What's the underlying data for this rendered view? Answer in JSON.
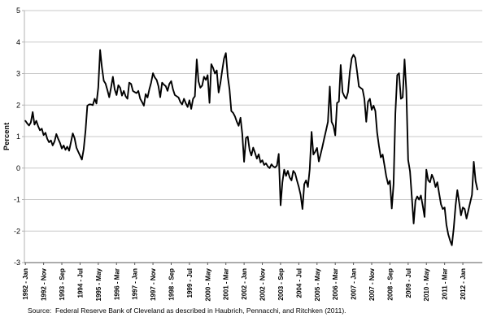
{
  "page": {
    "background": "#ffffff"
  },
  "chart_data": {
    "type": "line",
    "title": "",
    "xlabel": "",
    "ylabel": "Percent",
    "ylim": [
      -3,
      5
    ],
    "y_ticks": [
      5,
      4,
      3,
      2,
      1,
      0,
      -1,
      -2,
      -3
    ],
    "grid": "horizontal",
    "legend_position": "none",
    "x_start": "1992 - Jan",
    "x_frequency": "monthly",
    "x_ticks_every_n_points": 10,
    "x_tick_labels": [
      "1992 - Jan",
      "1992 - Nov",
      "1993 - Sep",
      "1994 - Jul",
      "1995 - May",
      "1996 - Mar",
      "1997 - Jan",
      "1997 - Nov",
      "1998 - Sep",
      "1999 - Jul",
      "2000 - May",
      "2001 - Mar",
      "2002 - Jan",
      "2002 - Nov",
      "2003 - Sep",
      "2004 - Jul",
      "2005 - May",
      "2006 - Mar",
      "2007 - Jan",
      "2007 - Nov",
      "2008 - Sep",
      "2009 - Jul",
      "2010 - May",
      "2011 - Mar",
      "2012 - Jan"
    ],
    "line_color": "#000000",
    "grid_color": "#c8c8c8",
    "y_axis_line_color": "#b3b3b3",
    "x_axis_line_color": "#595959",
    "values": [
      1.5,
      1.42,
      1.35,
      1.45,
      1.78,
      1.38,
      1.5,
      1.33,
      1.2,
      1.25,
      1.05,
      1.12,
      0.93,
      0.82,
      0.88,
      0.72,
      0.85,
      1.08,
      0.93,
      0.8,
      0.62,
      0.72,
      0.58,
      0.68,
      0.55,
      0.82,
      1.1,
      0.95,
      0.65,
      0.52,
      0.4,
      0.27,
      0.6,
      1.2,
      1.98,
      2.02,
      2.02,
      2.0,
      2.2,
      2.05,
      2.55,
      3.75,
      3.2,
      2.77,
      2.68,
      2.47,
      2.25,
      2.55,
      2.9,
      2.5,
      2.32,
      2.63,
      2.55,
      2.3,
      2.45,
      2.28,
      2.2,
      2.71,
      2.67,
      2.45,
      2.41,
      2.38,
      2.45,
      2.2,
      2.1,
      1.98,
      2.35,
      2.24,
      2.5,
      2.71,
      3.01,
      2.88,
      2.8,
      2.6,
      2.25,
      2.71,
      2.65,
      2.6,
      2.45,
      2.67,
      2.76,
      2.5,
      2.32,
      2.28,
      2.24,
      2.1,
      2.02,
      2.2,
      2.06,
      1.94,
      2.15,
      1.88,
      2.2,
      2.28,
      3.45,
      2.75,
      2.55,
      2.62,
      2.9,
      2.8,
      2.95,
      2.07,
      3.3,
      3.18,
      3.0,
      3.1,
      2.4,
      2.7,
      3.1,
      3.48,
      3.65,
      2.92,
      2.5,
      1.81,
      1.75,
      1.64,
      1.47,
      1.34,
      1.6,
      1.08,
      0.2,
      0.95,
      1.0,
      0.57,
      0.4,
      0.65,
      0.48,
      0.3,
      0.44,
      0.18,
      0.25,
      0.1,
      0.15,
      0.05,
      0.0,
      0.12,
      0.05,
      0.02,
      0.08,
      0.45,
      -1.18,
      -0.45,
      -0.05,
      -0.25,
      -0.09,
      -0.3,
      -0.39,
      -0.09,
      -0.17,
      -0.39,
      -0.6,
      -0.85,
      -1.3,
      -0.51,
      -0.39,
      -0.6,
      -0.04,
      1.15,
      0.43,
      0.52,
      0.64,
      0.21,
      0.45,
      0.69,
      0.95,
      1.21,
      1.47,
      2.59,
      1.47,
      1.34,
      1.04,
      2.07,
      2.11,
      3.27,
      2.41,
      2.28,
      2.2,
      2.41,
      3.05,
      3.48,
      3.6,
      3.5,
      3.05,
      2.59,
      2.54,
      2.5,
      2.2,
      1.47,
      2.11,
      2.2,
      1.85,
      1.98,
      1.81,
      1.12,
      0.69,
      0.34,
      0.43,
      0.09,
      -0.26,
      -0.51,
      -0.4,
      -1.28,
      -0.51,
      1.73,
      2.95,
      3.01,
      2.2,
      2.24,
      3.45,
      2.45,
      0.26,
      -0.1,
      -0.9,
      -1.76,
      -1.03,
      -0.9,
      -1.0,
      -0.87,
      -1.2,
      -1.55,
      -0.05,
      -0.39,
      -0.45,
      -0.21,
      -0.35,
      -0.6,
      -0.45,
      -0.8,
      -1.15,
      -1.3,
      -1.25,
      -1.8,
      -2.1,
      -2.3,
      -2.45,
      -1.9,
      -1.2,
      -0.7,
      -1.1,
      -1.5,
      -1.25,
      -1.3,
      -1.6,
      -1.35,
      -1.1,
      -0.85,
      0.2,
      -0.42,
      -0.68
    ],
    "source_note": "Source:  Federal Reserve Bank of Cleveland as described in Haubrich, Pennacchi, and Ritchken (2011)."
  }
}
